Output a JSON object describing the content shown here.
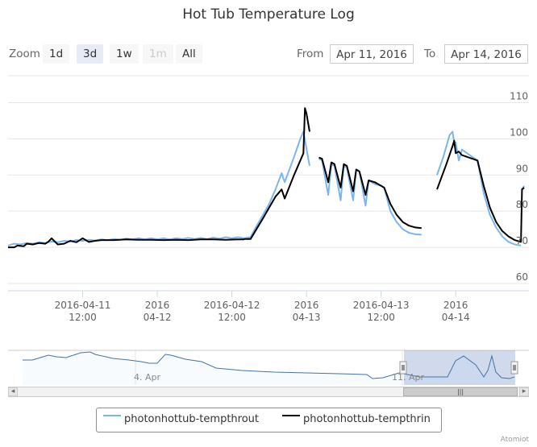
{
  "chart_data": {
    "type": "line",
    "title": "Hot Tub Temperature Log",
    "xlabel": "",
    "ylabel": "",
    "x_range": [
      "2016-04-11 00:00",
      "2016-04-14 08:00"
    ],
    "ylim": [
      58,
      117
    ],
    "y_ticks": [
      60,
      70,
      80,
      90,
      100,
      110
    ],
    "y_tick_labels": [
      "60",
      "70",
      "80",
      "90",
      "100",
      "110"
    ],
    "x_ticks": [
      {
        "t": "2016-04-11 12:00",
        "label": [
          "2016-04-11",
          "12:00"
        ]
      },
      {
        "t": "2016-04-12 00:00",
        "label": [
          "2016",
          "04-12"
        ]
      },
      {
        "t": "2016-04-12 12:00",
        "label": [
          "2016-04-12",
          "12:00"
        ]
      },
      {
        "t": "2016-04-13 00:00",
        "label": [
          "2016",
          "04-13"
        ]
      },
      {
        "t": "2016-04-13 12:00",
        "label": [
          "2016-04-13",
          "12:00"
        ]
      },
      {
        "t": "2016-04-14 00:00",
        "label": [
          "2016",
          "04-14"
        ]
      }
    ],
    "series": [
      {
        "name": "photonhottub-tempthrout",
        "color": "#7cb5ec",
        "segments": [
          [
            [
              "2016-04-11 00:00",
              70.5
            ],
            [
              "2016-04-11 01:00",
              71
            ],
            [
              "2016-04-11 02:00",
              70.8
            ],
            [
              "2016-04-11 03:00",
              71.2
            ],
            [
              "2016-04-11 04:00",
              71
            ],
            [
              "2016-04-11 05:00",
              71.4
            ],
            [
              "2016-04-11 06:00",
              71.2
            ],
            [
              "2016-04-11 07:00",
              71.6
            ],
            [
              "2016-04-11 08:00",
              71.4
            ],
            [
              "2016-04-11 09:00",
              71.8
            ],
            [
              "2016-04-11 10:00",
              71.6
            ],
            [
              "2016-04-11 11:00",
              72
            ],
            [
              "2016-04-11 12:00",
              71.8
            ],
            [
              "2016-04-11 13:00",
              72.1
            ],
            [
              "2016-04-11 14:00",
              71.9
            ],
            [
              "2016-04-11 15:00",
              72.2
            ],
            [
              "2016-04-11 16:00",
              72
            ],
            [
              "2016-04-11 17:00",
              72.3
            ],
            [
              "2016-04-11 18:00",
              72.1
            ],
            [
              "2016-04-11 19:00",
              72.4
            ],
            [
              "2016-04-11 20:00",
              72.2
            ],
            [
              "2016-04-11 21:00",
              72.5
            ],
            [
              "2016-04-11 22:00",
              72.2
            ],
            [
              "2016-04-11 23:00",
              72.5
            ],
            [
              "2016-04-12 00:00",
              72.2
            ],
            [
              "2016-04-12 01:00",
              72.5
            ],
            [
              "2016-04-12 02:00",
              72.2
            ],
            [
              "2016-04-12 03:00",
              72.5
            ],
            [
              "2016-04-12 04:00",
              72.3
            ],
            [
              "2016-04-12 05:00",
              72.6
            ],
            [
              "2016-04-12 06:00",
              72.3
            ],
            [
              "2016-04-12 07:00",
              72.6
            ],
            [
              "2016-04-12 08:00",
              72.3
            ],
            [
              "2016-04-12 09:00",
              72.7
            ],
            [
              "2016-04-12 10:00",
              72.4
            ],
            [
              "2016-04-12 11:00",
              72.8
            ],
            [
              "2016-04-12 12:00",
              72.5
            ],
            [
              "2016-04-12 13:00",
              72.8
            ],
            [
              "2016-04-12 14:00",
              72.5
            ],
            [
              "2016-04-12 15:00",
              72.8
            ],
            [
              "2016-04-12 16:00",
              76
            ],
            [
              "2016-04-12 18:00",
              82
            ],
            [
              "2016-04-12 19:00",
              86
            ],
            [
              "2016-04-12 20:00",
              90.5
            ],
            [
              "2016-04-12 20:30",
              88
            ],
            [
              "2016-04-12 22:00",
              95
            ],
            [
              "2016-04-12 23:00",
              100
            ],
            [
              "2016-04-12 23:30",
              102
            ],
            [
              "2016-04-13 00:30",
              92.5
            ]
          ],
          [
            [
              "2016-04-13 02:00",
              94.5
            ],
            [
              "2016-04-13 02:30",
              94
            ],
            [
              "2016-04-13 03:30",
              84.5
            ],
            [
              "2016-04-13 04:00",
              93
            ],
            [
              "2016-04-13 04:30",
              92.5
            ],
            [
              "2016-04-13 05:30",
              83
            ],
            [
              "2016-04-13 06:00",
              92.5
            ],
            [
              "2016-04-13 06:30",
              92
            ],
            [
              "2016-04-13 07:30",
              83
            ],
            [
              "2016-04-13 08:00",
              91.5
            ],
            [
              "2016-04-13 08:30",
              91
            ],
            [
              "2016-04-13 09:30",
              81.5
            ],
            [
              "2016-04-13 10:00",
              88.5
            ],
            [
              "2016-04-13 11:00",
              87.5
            ],
            [
              "2016-04-13 12:00",
              87
            ],
            [
              "2016-04-13 12:30",
              86.5
            ],
            [
              "2016-04-13 13:30",
              80
            ],
            [
              "2016-04-13 14:30",
              77
            ],
            [
              "2016-04-13 15:30",
              75
            ],
            [
              "2016-04-13 16:30",
              74
            ],
            [
              "2016-04-13 17:30",
              73.6
            ],
            [
              "2016-04-13 18:30",
              73.5
            ]
          ],
          [
            [
              "2016-04-13 21:00",
              90
            ],
            [
              "2016-04-13 22:00",
              95
            ],
            [
              "2016-04-13 23:00",
              101
            ],
            [
              "2016-04-13 23:30",
              102
            ],
            [
              "2016-04-13 23:50",
              98
            ],
            [
              "2016-04-14 00:00",
              99
            ],
            [
              "2016-04-14 00:30",
              94
            ],
            [
              "2016-04-14 01:00",
              97
            ],
            [
              "2016-04-14 03:30",
              94
            ],
            [
              "2016-04-14 04:30",
              85
            ],
            [
              "2016-04-14 05:30",
              79
            ],
            [
              "2016-04-14 06:30",
              75.5
            ],
            [
              "2016-04-14 07:30",
              73
            ],
            [
              "2016-04-14 08:30",
              71.5
            ],
            [
              "2016-04-14 09:30",
              70.8
            ],
            [
              "2016-04-14 10:30",
              70.5
            ]
          ],
          [
            [
              "2016-04-14 10:40",
              86
            ],
            [
              "2016-04-14 11:00",
              87
            ]
          ]
        ]
      },
      {
        "name": "photonhottub-tempthrin",
        "color": "#000000",
        "segments": [
          [
            [
              "2016-04-11 00:00",
              70
            ],
            [
              "2016-04-11 01:00",
              70
            ],
            [
              "2016-04-11 01:30",
              70.5
            ],
            [
              "2016-04-11 02:30",
              70.3
            ],
            [
              "2016-04-11 03:00",
              71
            ],
            [
              "2016-04-11 04:00",
              70.8
            ],
            [
              "2016-04-11 05:00",
              71.2
            ],
            [
              "2016-04-11 06:00",
              71
            ],
            [
              "2016-04-11 06:30",
              71.6
            ],
            [
              "2016-04-11 07:00",
              72.5
            ],
            [
              "2016-04-11 08:00",
              70.8
            ],
            [
              "2016-04-11 09:00",
              71
            ],
            [
              "2016-04-11 10:00",
              71.8
            ],
            [
              "2016-04-11 11:00",
              71.4
            ],
            [
              "2016-04-11 12:00",
              72.5
            ],
            [
              "2016-04-11 13:00",
              71.5
            ],
            [
              "2016-04-11 14:00",
              71.8
            ],
            [
              "2016-04-11 15:00",
              72
            ],
            [
              "2016-04-11 17:00",
              72
            ],
            [
              "2016-04-11 19:00",
              72.2
            ],
            [
              "2016-04-11 21:00",
              72.1
            ],
            [
              "2016-04-11 23:00",
              72.1
            ],
            [
              "2016-04-12 01:00",
              72
            ],
            [
              "2016-04-12 03:00",
              72.1
            ],
            [
              "2016-04-12 05:00",
              72
            ],
            [
              "2016-04-12 07:00",
              72.2
            ],
            [
              "2016-04-12 09:00",
              72.2
            ],
            [
              "2016-04-12 11:00",
              72.1
            ],
            [
              "2016-04-12 13:00",
              72.2
            ],
            [
              "2016-04-12 14:00",
              72.2
            ]
          ],
          [
            [
              "2016-04-12 14:00",
              72.3
            ],
            [
              "2016-04-12 15:00",
              72.3
            ],
            [
              "2016-04-12 17:00",
              78
            ],
            [
              "2016-04-12 19:00",
              84
            ],
            [
              "2016-04-12 20:00",
              86
            ],
            [
              "2016-04-12 20:30",
              83.5
            ],
            [
              "2016-04-12 22:00",
              90
            ],
            [
              "2016-04-12 23:30",
              96
            ],
            [
              "2016-04-12 23:45",
              108.5
            ],
            [
              "2016-04-13 00:00",
              107
            ],
            [
              "2016-04-13 00:30",
              102
            ]
          ],
          [
            [
              "2016-04-13 02:00",
              94.8
            ],
            [
              "2016-04-13 02:30",
              94.5
            ],
            [
              "2016-04-13 03:30",
              88
            ],
            [
              "2016-04-13 04:00",
              93.5
            ],
            [
              "2016-04-13 04:30",
              93
            ],
            [
              "2016-04-13 05:30",
              86.5
            ],
            [
              "2016-04-13 06:00",
              93
            ],
            [
              "2016-04-13 06:30",
              92.5
            ],
            [
              "2016-04-13 07:30",
              85.5
            ],
            [
              "2016-04-13 08:00",
              91.5
            ],
            [
              "2016-04-13 08:30",
              91
            ],
            [
              "2016-04-13 09:30",
              84.5
            ],
            [
              "2016-04-13 10:00",
              88.5
            ],
            [
              "2016-04-13 11:00",
              88
            ],
            [
              "2016-04-13 12:00",
              87
            ],
            [
              "2016-04-13 12:30",
              86.5
            ],
            [
              "2016-04-13 13:30",
              82
            ],
            [
              "2016-04-13 14:30",
              79
            ],
            [
              "2016-04-13 15:30",
              77
            ],
            [
              "2016-04-13 16:30",
              76
            ],
            [
              "2016-04-13 17:30",
              75.5
            ],
            [
              "2016-04-13 18:30",
              75.3
            ]
          ],
          [
            [
              "2016-04-13 21:00",
              86
            ],
            [
              "2016-04-13 22:30",
              93
            ],
            [
              "2016-04-13 23:30",
              98
            ],
            [
              "2016-04-13 23:45",
              99.5
            ],
            [
              "2016-04-14 00:00",
              96
            ],
            [
              "2016-04-14 00:30",
              96.5
            ],
            [
              "2016-04-14 01:00",
              95.5
            ],
            [
              "2016-04-14 03:30",
              94
            ],
            [
              "2016-04-14 04:30",
              87
            ],
            [
              "2016-04-14 05:30",
              81
            ],
            [
              "2016-04-14 06:30",
              77
            ],
            [
              "2016-04-14 07:30",
              74.5
            ],
            [
              "2016-04-14 08:30",
              73
            ],
            [
              "2016-04-14 09:30",
              72
            ],
            [
              "2016-04-14 10:30",
              71.5
            ],
            [
              "2016-04-14 10:40",
              86
            ],
            [
              "2016-04-14 11:00",
              86.5
            ]
          ]
        ]
      }
    ],
    "navigator": {
      "labels": [
        "4. Apr",
        "11. Apr"
      ],
      "selection_range": [
        "2016-04-11",
        "2016-04-14"
      ]
    },
    "legend": {
      "placement": "bottom-center"
    }
  },
  "header": {
    "zoom_label": "Zoom",
    "zoom_buttons": [
      "1d",
      "3d",
      "1w",
      "1m",
      "All"
    ],
    "from_label": "From",
    "from_value": "Apr 11, 2016",
    "to_label": "To",
    "to_value": "Apr 14, 2016"
  },
  "credit": "Atomiot"
}
